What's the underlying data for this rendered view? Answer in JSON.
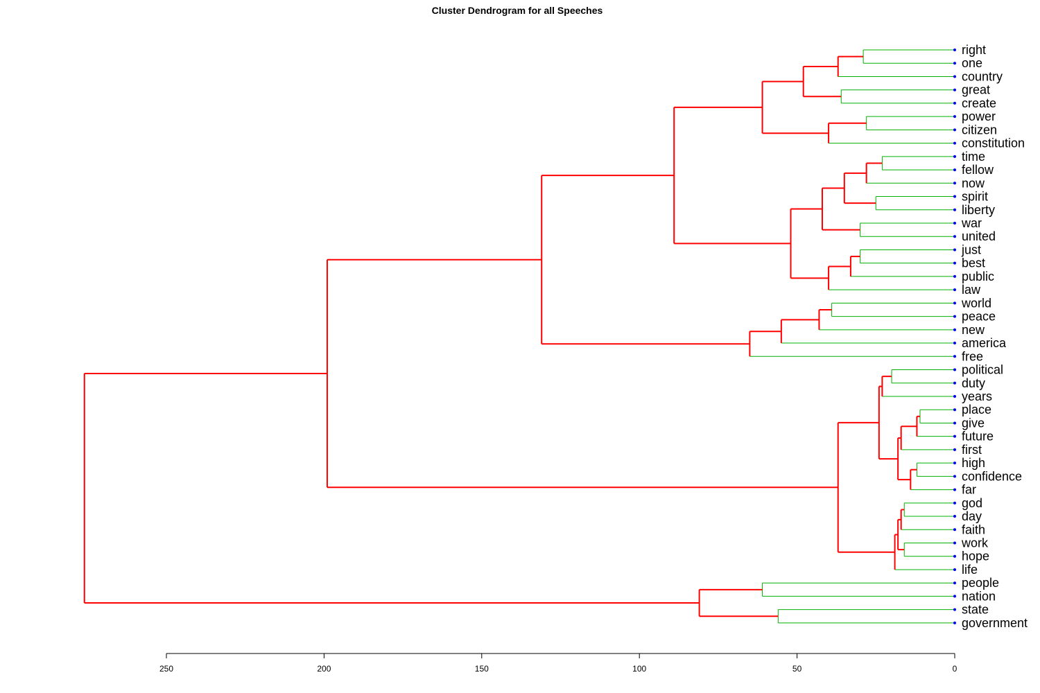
{
  "title": "Cluster Dendrogram for all Speeches",
  "colors": {
    "cluster_branch": "#ff0000",
    "leaf_branch": "#00b000",
    "leaf_point": "#0000ff",
    "axis": "#000000"
  },
  "axis": {
    "ticks": [
      250,
      200,
      150,
      100,
      50,
      0
    ],
    "range": [
      0,
      280
    ]
  },
  "chart_data": {
    "type": "dendrogram",
    "title": "Cluster Dendrogram for all Speeches",
    "leaves": [
      "right",
      "one",
      "country",
      "great",
      "create",
      "power",
      "citizen",
      "constitution",
      "time",
      "fellow",
      "now",
      "spirit",
      "liberty",
      "war",
      "united",
      "just",
      "best",
      "public",
      "law",
      "world",
      "peace",
      "new",
      "america",
      "free",
      "political",
      "duty",
      "years",
      "place",
      "give",
      "future",
      "first",
      "high",
      "confidence",
      "far",
      "god",
      "day",
      "faith",
      "work",
      "hope",
      "life",
      "people",
      "nation",
      "state",
      "government"
    ],
    "merges": [
      {
        "a": "right",
        "b": "one",
        "height": 29
      },
      {
        "a": 0,
        "b": "country",
        "height": 37
      },
      {
        "a": "great",
        "b": "create",
        "height": 36
      },
      {
        "a": 1,
        "b": 2,
        "height": 48
      },
      {
        "a": "power",
        "b": "citizen",
        "height": 28
      },
      {
        "a": 4,
        "b": "constitution",
        "height": 40
      },
      {
        "a": 3,
        "b": 5,
        "height": 61
      },
      {
        "a": "time",
        "b": "fellow",
        "height": 23
      },
      {
        "a": 7,
        "b": "now",
        "height": 28
      },
      {
        "a": "spirit",
        "b": "liberty",
        "height": 25
      },
      {
        "a": 8,
        "b": 9,
        "height": 35
      },
      {
        "a": "war",
        "b": "united",
        "height": 30
      },
      {
        "a": 10,
        "b": 11,
        "height": 42
      },
      {
        "a": "just",
        "b": "best",
        "height": 30
      },
      {
        "a": 13,
        "b": "public",
        "height": 33
      },
      {
        "a": 14,
        "b": "law",
        "height": 40
      },
      {
        "a": 12,
        "b": 15,
        "height": 52
      },
      {
        "a": 6,
        "b": 16,
        "height": 89
      },
      {
        "a": "world",
        "b": "peace",
        "height": 39
      },
      {
        "a": 18,
        "b": "new",
        "height": 43
      },
      {
        "a": 19,
        "b": "america",
        "height": 55
      },
      {
        "a": 20,
        "b": "free",
        "height": 65
      },
      {
        "a": 17,
        "b": 21,
        "height": 131
      },
      {
        "a": "political",
        "b": "duty",
        "height": 20
      },
      {
        "a": 23,
        "b": "years",
        "height": 23
      },
      {
        "a": "place",
        "b": "give",
        "height": 11
      },
      {
        "a": 25,
        "b": "future",
        "height": 12
      },
      {
        "a": 26,
        "b": "first",
        "height": 17
      },
      {
        "a": "high",
        "b": "confidence",
        "height": 12
      },
      {
        "a": 28,
        "b": "far",
        "height": 14
      },
      {
        "a": 27,
        "b": 29,
        "height": 18
      },
      {
        "a": 24,
        "b": 30,
        "height": 24
      },
      {
        "a": "god",
        "b": "day",
        "height": 16
      },
      {
        "a": 32,
        "b": "faith",
        "height": 17
      },
      {
        "a": "work",
        "b": "hope",
        "height": 16
      },
      {
        "a": 33,
        "b": 34,
        "height": 18
      },
      {
        "a": 35,
        "b": "life",
        "height": 19
      },
      {
        "a": 31,
        "b": 36,
        "height": 37
      },
      {
        "a": 22,
        "b": 37,
        "height": 199
      },
      {
        "a": "people",
        "b": "nation",
        "height": 61
      },
      {
        "a": "state",
        "b": "government",
        "height": 56
      },
      {
        "a": 39,
        "b": 40,
        "height": 81
      },
      {
        "a": 38,
        "b": 41,
        "height": 276
      }
    ]
  }
}
